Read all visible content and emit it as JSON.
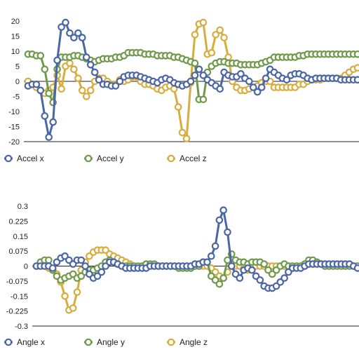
{
  "chart_data": [
    {
      "type": "line",
      "ylim": [
        -20,
        20
      ],
      "yticks": [
        20,
        15,
        10,
        5,
        0,
        -5,
        -10,
        -15,
        -20
      ],
      "grid": false,
      "legend_position": "bottom-left",
      "x": [
        1,
        2,
        3,
        4,
        5,
        6,
        7,
        8,
        9,
        10,
        11,
        12,
        13,
        14,
        15,
        16,
        17,
        18,
        19,
        20,
        21,
        22,
        23,
        24,
        25,
        26,
        27,
        28,
        29,
        30,
        31,
        32,
        33,
        34,
        35,
        36,
        37,
        38,
        39,
        40,
        41,
        42,
        43,
        44,
        45,
        46,
        47,
        48,
        49,
        50,
        51,
        52,
        53,
        54,
        55,
        56,
        57,
        58,
        59,
        60,
        61,
        62,
        63,
        64,
        65,
        66,
        67,
        68,
        69,
        70,
        71,
        72,
        73,
        74,
        75,
        76,
        77,
        78,
        79,
        80
      ],
      "series": [
        {
          "name": "Accel x",
          "color": "#4a65a8",
          "values": [
            -1.5,
            -1,
            -1,
            -3,
            -11.5,
            -18.5,
            -13.5,
            7,
            18,
            19.5,
            16,
            14.5,
            16,
            14.5,
            8,
            5.5,
            3,
            0.5,
            -1,
            -1,
            -1.5,
            -1.5,
            0,
            1.5,
            2,
            2,
            2,
            1.5,
            1,
            0.5,
            0,
            -0.5,
            0.5,
            1,
            0.5,
            -0.5,
            -1,
            -1.5,
            -1,
            0,
            2,
            4,
            2,
            0.5,
            -0.5,
            -1.5,
            -2.5,
            3,
            2,
            1.5,
            1.5,
            2.5,
            1,
            0,
            -2,
            -3.5,
            -2,
            1,
            4,
            3,
            2,
            1,
            0.5,
            2,
            2.5,
            2.5,
            2,
            1,
            0.5,
            1,
            1,
            1,
            1,
            1,
            1,
            0.5,
            0.5,
            0.5,
            0.5,
            0.5
          ]
        },
        {
          "name": "Accel y",
          "color": "#6f9a4c",
          "values": [
            9,
            9,
            8.5,
            8.5,
            4,
            -4,
            -7,
            4,
            8,
            8,
            8,
            8.5,
            8.5,
            8,
            7.5,
            7,
            6.5,
            7,
            7.5,
            7.5,
            7.5,
            8,
            8,
            8.5,
            9.5,
            9.5,
            9.5,
            9.5,
            9,
            9,
            9,
            8.5,
            8.5,
            8.5,
            8.5,
            8,
            8,
            7.5,
            7,
            6.5,
            6,
            -6,
            -6,
            3,
            5,
            6,
            6.5,
            6.5,
            6,
            6,
            6,
            5.5,
            5.5,
            5.5,
            5.5,
            5.5,
            6,
            6.5,
            7,
            8,
            8,
            8,
            8,
            8,
            8,
            8.5,
            8.5,
            9,
            9,
            9,
            9,
            9,
            9,
            9,
            9,
            9,
            9,
            9,
            9,
            9
          ]
        },
        {
          "name": "Accel z",
          "color": "#d9ac3e",
          "values": [
            0,
            -1,
            -2,
            -3,
            -4,
            -3,
            -2,
            2,
            -2.5,
            5,
            6,
            4,
            1,
            -3,
            -5,
            -3,
            0,
            1,
            1,
            0,
            -1,
            -1,
            0.5,
            0,
            0.5,
            1.5,
            1.5,
            0,
            -1,
            -1,
            -1.5,
            -2.5,
            -3,
            -2,
            -1.5,
            -2.5,
            -8.5,
            -17,
            -19,
            -0.5,
            15.5,
            19,
            19.5,
            9,
            9.5,
            15.5,
            17,
            14.5,
            8,
            0,
            -2,
            -3,
            -3,
            -2.5,
            -2,
            -1.5,
            -0.5,
            0,
            0,
            -2,
            -2,
            -2,
            -2,
            -2,
            -2,
            -1,
            -1,
            0,
            0.5,
            0.5,
            0.5,
            1,
            1,
            1,
            1,
            1,
            2,
            3,
            4,
            4.5
          ]
        }
      ]
    },
    {
      "type": "line",
      "ylim": [
        -0.3,
        0.3
      ],
      "yticks": [
        "0.3",
        "0.225",
        "0.15",
        "0.075",
        "0",
        "-0.075",
        "-0.15",
        "-0.225",
        "-0.3"
      ],
      "ytick_values": [
        0.3,
        0.225,
        0.15,
        0.075,
        0,
        -0.075,
        -0.15,
        -0.225,
        -0.3
      ],
      "grid": false,
      "legend_position": "bottom-left",
      "x": [
        1,
        2,
        3,
        4,
        5,
        6,
        7,
        8,
        9,
        10,
        11,
        12,
        13,
        14,
        15,
        16,
        17,
        18,
        19,
        20,
        21,
        22,
        23,
        24,
        25,
        26,
        27,
        28,
        29,
        30,
        31,
        32,
        33,
        34,
        35,
        36,
        37,
        38,
        39,
        40,
        41,
        42,
        43,
        44,
        45,
        46,
        47,
        48,
        49,
        50,
        51,
        52,
        53,
        54,
        55,
        56,
        57,
        58,
        59,
        60,
        61,
        62,
        63,
        64,
        65,
        66,
        67,
        68,
        69,
        70,
        71,
        72,
        73,
        74,
        75,
        76,
        77,
        78,
        79,
        80
      ],
      "series": [
        {
          "name": "Angle x",
          "color": "#4a65a8",
          "values": [
            0,
            0,
            0,
            0,
            -0.01,
            0.02,
            0.04,
            0.05,
            0.03,
            0.01,
            0.03,
            0.03,
            0,
            -0.04,
            -0.06,
            -0.05,
            -0.03,
            0,
            0.02,
            0.02,
            0.01,
            0,
            -0.01,
            -0.01,
            -0.01,
            -0.01,
            -0.01,
            -0.01,
            0,
            0,
            0,
            0,
            0,
            0,
            0,
            0,
            0,
            0,
            0,
            0.01,
            0.01,
            0.02,
            0.02,
            0.05,
            0.1,
            0.23,
            0.28,
            0.17,
            0,
            -0.04,
            -0.06,
            -0.02,
            -0.01,
            -0.02,
            -0.05,
            -0.07,
            -0.1,
            -0.11,
            -0.11,
            -0.1,
            -0.08,
            -0.06,
            -0.03,
            -0.01,
            -0.01,
            -0.01,
            0,
            0.01,
            0.01,
            0.01,
            0.01,
            0.01,
            0.01,
            0.01,
            0.01,
            0.01,
            0.01,
            0.01,
            0,
            -0.01
          ]
        },
        {
          "name": "Angle y",
          "color": "#6f9a4c",
          "values": [
            0,
            0.02,
            0.03,
            0.03,
            -0.02,
            -0.05,
            -0.07,
            -0.06,
            -0.05,
            -0.04,
            -0.06,
            -0.05,
            -0.03,
            -0.02,
            -0.02,
            -0.01,
            0,
            0.02,
            0.03,
            0.02,
            0.01,
            0,
            0,
            0,
            0,
            0,
            0,
            0.01,
            0.01,
            0.01,
            0,
            0,
            0,
            0,
            0,
            -0.01,
            -0.01,
            -0.01,
            -0.01,
            0,
            0,
            0.02,
            0.02,
            -0.05,
            -0.07,
            -0.09,
            -0.06,
            0.03,
            0.06,
            0.03,
            0.02,
            0.02,
            0.01,
            0.02,
            0.02,
            0.02,
            0.01,
            -0.02,
            -0.04,
            -0.02,
            0,
            0.01,
            0,
            0,
            0,
            0,
            0.01,
            0.03,
            0.03,
            0.02,
            0.01,
            0,
            0,
            0,
            0,
            0,
            0,
            0,
            0,
            0
          ]
        },
        {
          "name": "Angle z",
          "color": "#d9ac3e",
          "values": [
            0,
            0,
            0,
            -0.01,
            -0.02,
            -0.04,
            -0.08,
            -0.15,
            -0.22,
            -0.21,
            -0.13,
            -0.02,
            0.02,
            0.05,
            0.07,
            0.08,
            0.08,
            0.08,
            0.06,
            0.05,
            0.04,
            0.03,
            0.02,
            0.01,
            0,
            0,
            0,
            0,
            0,
            0,
            0,
            0,
            0,
            0,
            0,
            0,
            0,
            0,
            0,
            0,
            0,
            0,
            0,
            -0.01,
            -0.03,
            -0.05,
            -0.06,
            -0.03,
            0,
            0,
            0,
            -0.01,
            -0.02,
            -0.01,
            0,
            0,
            0,
            0,
            0,
            0,
            0,
            0,
            0,
            0,
            0,
            0,
            0,
            0.01,
            0.01,
            0.01,
            0.01,
            0,
            0,
            0,
            0,
            0,
            0,
            0,
            0,
            0
          ]
        }
      ]
    }
  ]
}
